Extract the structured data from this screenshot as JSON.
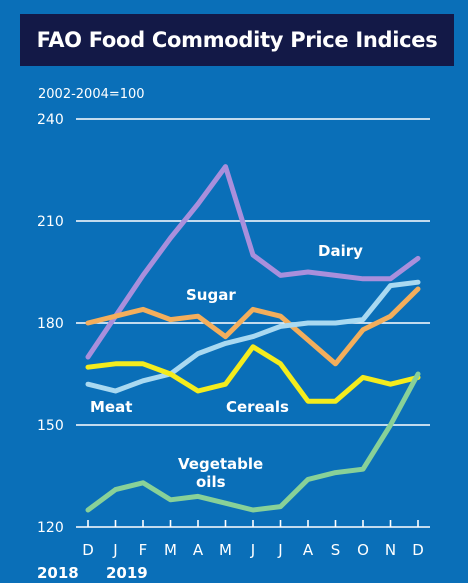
{
  "header": {
    "title": "FAO Food Commodity Price Indices"
  },
  "chart_data": {
    "type": "line",
    "title": "FAO Food Commodity Price Indices",
    "ylabel": "2002-2004=100",
    "ylim": [
      120,
      240
    ],
    "yticks": [
      120,
      150,
      180,
      210,
      240
    ],
    "categories": [
      "D",
      "J",
      "F",
      "M",
      "A",
      "M",
      "J",
      "J",
      "A",
      "S",
      "O",
      "N",
      "D"
    ],
    "year_labels": [
      "2018",
      "2019"
    ],
    "grid": true,
    "series": [
      {
        "name": "Dairy",
        "color": "#a98fdc",
        "values": [
          170,
          182,
          194,
          205,
          215,
          226,
          200,
          194,
          195,
          194,
          193,
          193,
          199
        ]
      },
      {
        "name": "Sugar",
        "color": "#f3ae5c",
        "values": [
          180,
          182,
          184,
          181,
          182,
          176,
          184,
          182,
          175,
          168,
          178,
          182,
          190
        ]
      },
      {
        "name": "Meat",
        "color": "#a9d9f1",
        "values": [
          162,
          160,
          163,
          165,
          171,
          174,
          176,
          179,
          180,
          180,
          181,
          191,
          192
        ]
      },
      {
        "name": "Cereals",
        "color": "#f4ec1d",
        "values": [
          167,
          168,
          168,
          165,
          160,
          162,
          173,
          168,
          157,
          157,
          164,
          162,
          164
        ]
      },
      {
        "name": "Vegetable\noils",
        "color": "#88d198",
        "values": [
          125,
          131,
          133,
          128,
          129,
          127,
          125,
          126,
          134,
          136,
          137,
          150,
          165
        ]
      }
    ]
  }
}
